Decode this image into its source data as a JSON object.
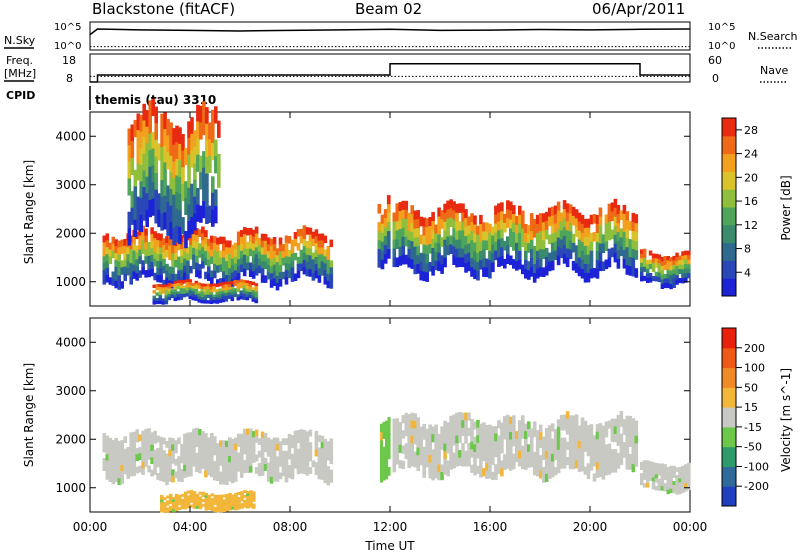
{
  "header": {
    "station": "Blackstone (fitACF)",
    "beam": "Beam 02",
    "date": "06/Apr/2011"
  },
  "noise_panel": {
    "left_label": "N.Sky",
    "right_label": "N.Search",
    "left_ticks": [
      "10^5",
      "10^0"
    ],
    "right_ticks": [
      "10^5",
      "10^0"
    ]
  },
  "freq_panel": {
    "left_label": "Freq.",
    "left_unit": "[MHz]",
    "left_ticks": [
      "18",
      "8"
    ],
    "right_label": "Nave",
    "right_ticks": [
      "60",
      "0"
    ],
    "cpid_label": "CPID",
    "cpid_text": "themis (tau) 3310"
  },
  "x_axis": {
    "label": "Time UT",
    "ticks": [
      "00:00",
      "04:00",
      "08:00",
      "12:00",
      "16:00",
      "20:00",
      "00:00"
    ]
  },
  "chart_data": [
    {
      "type": "line",
      "panel": "noise",
      "xlim": [
        0,
        24
      ],
      "series": [
        {
          "name": "N.Sky",
          "style": "solid",
          "x": [
            0,
            0.3,
            2,
            4,
            6,
            8,
            10,
            12,
            14,
            16,
            18,
            20,
            22,
            24
          ],
          "y": [
            0.55,
            0.75,
            0.72,
            0.7,
            0.68,
            0.7,
            0.72,
            0.74,
            0.7,
            0.71,
            0.73,
            0.72,
            0.74,
            0.75
          ]
        },
        {
          "name": "N.Search",
          "style": "dotted",
          "x": [
            0,
            24
          ],
          "y": [
            0.05,
            0.05
          ]
        }
      ]
    },
    {
      "type": "line",
      "panel": "frequency",
      "xlim": [
        0,
        24
      ],
      "series": [
        {
          "name": "Freq.",
          "style": "solid",
          "axis": "left",
          "x": [
            0,
            0.3,
            0.3,
            12,
            12,
            22,
            22,
            24
          ],
          "y": [
            8,
            8,
            10.5,
            10.5,
            14.5,
            14.5,
            10.5,
            10.5
          ]
        },
        {
          "name": "Nave",
          "style": "dotted",
          "axis": "right",
          "x": [
            0,
            24
          ],
          "y": [
            12,
            12
          ]
        }
      ],
      "ylim_left": [
        8,
        18
      ],
      "ylim_right": [
        0,
        60
      ]
    },
    {
      "type": "heatmap",
      "panel": "power",
      "title": "Power [dB]",
      "ylabel": "Slant Range [km]",
      "xlim": [
        0,
        24
      ],
      "ylim": [
        500,
        4500
      ],
      "y_ticks": [
        1000,
        2000,
        3000,
        4000
      ],
      "colorbar": {
        "label": "Power [dB]",
        "ticks": [
          4,
          8,
          12,
          16,
          20,
          24,
          28
        ],
        "range": [
          0,
          30
        ],
        "colors": [
          "#1c22d6",
          "#2a47b8",
          "#2f6a8e",
          "#3a8a6c",
          "#4fa55a",
          "#8fbf3c",
          "#d9c22a",
          "#f2a01e",
          "#ee6a16",
          "#e82a10"
        ]
      },
      "echo_bands": [
        {
          "t_start": 0.5,
          "t_end": 9.7,
          "range_start_km": 1000,
          "range_end_km": 2000
        },
        {
          "t_start": 2.5,
          "t_end": 6.7,
          "range_start_km": 600,
          "range_end_km": 1000
        },
        {
          "t_start": 1.5,
          "t_end": 5.2,
          "range_start_km": 2000,
          "range_end_km": 4400
        },
        {
          "t_start": 11.5,
          "t_end": 12.0,
          "range_start_km": 1300,
          "range_end_km": 2600
        },
        {
          "t_start": 12.1,
          "t_end": 21.9,
          "range_start_km": 1200,
          "range_end_km": 2500
        },
        {
          "t_start": 22.0,
          "t_end": 24.0,
          "range_start_km": 950,
          "range_end_km": 1600
        }
      ]
    },
    {
      "type": "heatmap",
      "panel": "velocity",
      "title": "Velocity [m s^-1]",
      "ylabel": "Slant Range [km]",
      "xlim": [
        0,
        24
      ],
      "ylim": [
        500,
        4500
      ],
      "y_ticks": [
        1000,
        2000,
        3000,
        4000
      ],
      "colorbar": {
        "label": "Velocity [m s^-1]",
        "ticks": [
          200,
          100,
          50,
          15,
          -15,
          -50,
          -100,
          -200
        ],
        "colors": [
          "#1e3fbf",
          "#2f6a9a",
          "#2f9a6a",
          "#6cc84a",
          "#c9c9c4",
          "#f2b73a",
          "#f08a26",
          "#ee5a16",
          "#e8200c"
        ]
      },
      "echo_bands": [
        {
          "t_start": 0.5,
          "t_end": 9.7,
          "range_start_km": 1200,
          "range_end_km": 2100,
          "color": "gray"
        },
        {
          "t_start": 2.8,
          "t_end": 6.6,
          "range_start_km": 550,
          "range_end_km": 900,
          "color": "orange"
        },
        {
          "t_start": 11.6,
          "t_end": 12.0,
          "range_start_km": 1300,
          "range_end_km": 2500,
          "color": "green"
        },
        {
          "t_start": 12.1,
          "t_end": 21.9,
          "range_start_km": 1300,
          "range_end_km": 2400,
          "color": "gray"
        },
        {
          "t_start": 22.0,
          "t_end": 24.0,
          "range_start_km": 950,
          "range_end_km": 1500,
          "color": "gray"
        }
      ]
    }
  ]
}
